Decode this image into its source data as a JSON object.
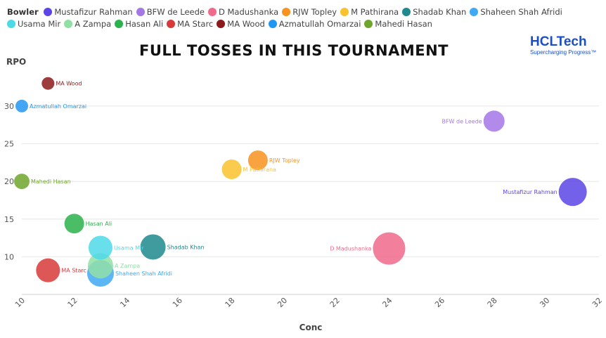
{
  "legend": {
    "title": "Bowler"
  },
  "header": {
    "title": "FULL TOSSES IN THIS TOURNAMENT"
  },
  "logo": {
    "name": "HCLTech",
    "tagline": "Supercharging Progress™"
  },
  "chart_data": {
    "type": "scatter",
    "title": "FULL TOSSES IN THIS TOURNAMENT",
    "xlabel": "Conc",
    "ylabel": "RPO",
    "xlim": [
      10,
      32
    ],
    "ylim": [
      5,
      34
    ],
    "xticks": [
      10,
      12,
      14,
      16,
      18,
      20,
      22,
      24,
      26,
      28,
      30,
      32
    ],
    "yticks": [
      10,
      15,
      20,
      25,
      30
    ],
    "grid": "horizontal",
    "legend_position": "top",
    "legend_title": "Bowler",
    "series": [
      {
        "name": "Mustafizur Rahman",
        "x": 31,
        "y": 18.6,
        "color": "#5b45e6",
        "size": 20
      },
      {
        "name": "BFW de Leede",
        "x": 28,
        "y": 28,
        "color": "#a476e6",
        "size": 15
      },
      {
        "name": "D Madushanka",
        "x": 24,
        "y": 11.1,
        "color": "#f06a8c",
        "size": 23
      },
      {
        "name": "RJW Topley",
        "x": 19,
        "y": 22.8,
        "color": "#f7931e",
        "size": 14
      },
      {
        "name": "M Pathirana",
        "x": 18,
        "y": 21.6,
        "color": "#f9c22e",
        "size": 14
      },
      {
        "name": "Shadab Khan",
        "x": 15,
        "y": 11.3,
        "color": "#1f8a8e",
        "size": 18
      },
      {
        "name": "Shaheen Shah Afridi",
        "x": 13,
        "y": 7.8,
        "color": "#3fa9f5",
        "size": 19
      },
      {
        "name": "Usama Mir",
        "x": 13,
        "y": 11.2,
        "color": "#4dd9e6",
        "size": 17
      },
      {
        "name": "A Zampa",
        "x": 13,
        "y": 8.8,
        "color": "#90e0a6",
        "size": 18
      },
      {
        "name": "Hasan Ali",
        "x": 12,
        "y": 14.4,
        "color": "#2bb24c",
        "size": 14
      },
      {
        "name": "MA Starc",
        "x": 11,
        "y": 8.2,
        "color": "#d83a3a",
        "size": 17
      },
      {
        "name": "MA Wood",
        "x": 11,
        "y": 33,
        "color": "#8b1a1a",
        "size": 9
      },
      {
        "name": "Azmatullah Omarzai",
        "x": 10,
        "y": 30,
        "color": "#2196f3",
        "size": 9
      },
      {
        "name": "Mahedi Hasan",
        "x": 10,
        "y": 20,
        "color": "#6ea62c",
        "size": 11
      }
    ]
  }
}
